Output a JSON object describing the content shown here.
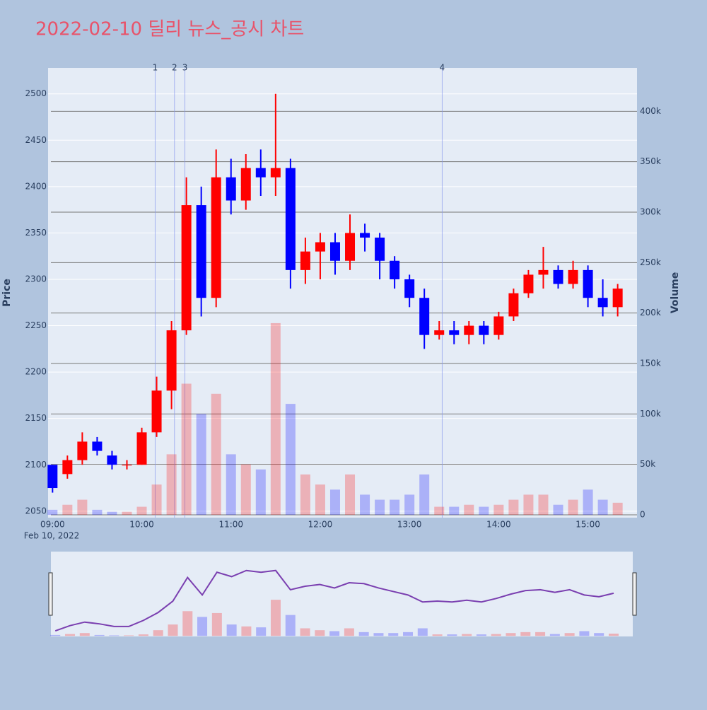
{
  "chart_data": {
    "type": "candlestick",
    "title": "2022-02-10 딜리 뉴스_공시 차트",
    "y_label": "Price",
    "y2_label": "Volume",
    "x": [
      "09:00",
      "09:10",
      "09:20",
      "09:30",
      "09:40",
      "09:50",
      "10:00",
      "10:10",
      "10:20",
      "10:30",
      "10:40",
      "10:50",
      "11:00",
      "11:10",
      "11:20",
      "11:30",
      "11:40",
      "11:50",
      "12:00",
      "12:10",
      "12:20",
      "12:30",
      "12:40",
      "12:50",
      "13:00",
      "13:10",
      "13:20",
      "13:30",
      "13:40",
      "13:50",
      "14:00",
      "14:10",
      "14:20",
      "14:30",
      "14:40",
      "14:50",
      "15:00",
      "15:10",
      "15:20"
    ],
    "open": [
      2100,
      2090,
      2105,
      2125,
      2110,
      2100,
      2100,
      2135,
      2180,
      2245,
      2380,
      2280,
      2410,
      2385,
      2420,
      2410,
      2420,
      2310,
      2330,
      2340,
      2320,
      2350,
      2345,
      2320,
      2300,
      2280,
      2240,
      2245,
      2240,
      2250,
      2240,
      2260,
      2285,
      2305,
      2310,
      2295,
      2310,
      2280,
      2270
    ],
    "high": [
      2100,
      2110,
      2135,
      2130,
      2115,
      2105,
      2140,
      2195,
      2255,
      2410,
      2400,
      2440,
      2430,
      2435,
      2440,
      2500,
      2430,
      2345,
      2350,
      2350,
      2370,
      2360,
      2350,
      2325,
      2305,
      2290,
      2255,
      2255,
      2255,
      2255,
      2265,
      2290,
      2310,
      2335,
      2315,
      2320,
      2315,
      2300,
      2295
    ],
    "low": [
      2070,
      2085,
      2100,
      2110,
      2095,
      2095,
      2100,
      2130,
      2160,
      2240,
      2260,
      2270,
      2370,
      2375,
      2390,
      2390,
      2290,
      2295,
      2300,
      2305,
      2310,
      2330,
      2300,
      2290,
      2270,
      2225,
      2235,
      2230,
      2230,
      2230,
      2235,
      2255,
      2280,
      2290,
      2290,
      2290,
      2270,
      2260,
      2260
    ],
    "close": [
      2075,
      2105,
      2125,
      2115,
      2100,
      2100,
      2135,
      2180,
      2245,
      2380,
      2280,
      2410,
      2385,
      2420,
      2410,
      2420,
      2310,
      2330,
      2340,
      2320,
      2350,
      2345,
      2320,
      2300,
      2280,
      2240,
      2245,
      2240,
      2250,
      2240,
      2260,
      2285,
      2305,
      2310,
      2295,
      2310,
      2280,
      2270,
      2290
    ],
    "volume": [
      5000,
      10000,
      15000,
      5000,
      3000,
      3000,
      8000,
      30000,
      60000,
      130000,
      100000,
      120000,
      60000,
      50000,
      45000,
      190000,
      110000,
      40000,
      30000,
      25000,
      40000,
      20000,
      15000,
      15000,
      20000,
      40000,
      8000,
      8000,
      10000,
      8000,
      10000,
      15000,
      20000,
      20000,
      10000,
      15000,
      25000,
      15000,
      12000
    ],
    "increasing_color": "#ff0000",
    "decreasing_color": "#0000ff",
    "xlim": [
      "08:57",
      "15:33"
    ],
    "xticks": [
      "09:00",
      "10:00",
      "11:00",
      "12:00",
      "13:00",
      "14:00",
      "15:00"
    ],
    "x_date_label": "Feb 10, 2022",
    "ylim": [
      2043,
      2528
    ],
    "yticks": [
      2050,
      2100,
      2150,
      2200,
      2250,
      2300,
      2350,
      2400,
      2450,
      2500
    ],
    "y2lim": [
      -2800,
      443000
    ],
    "y2ticks": [
      0,
      {
        "value": 50000,
        "label": "50k"
      },
      {
        "value": 100000,
        "label": "100k"
      },
      {
        "value": 150000,
        "label": "150k"
      },
      {
        "value": 200000,
        "label": "200k"
      },
      {
        "value": 250000,
        "label": "250k"
      },
      {
        "value": 300000,
        "label": "300k"
      },
      {
        "value": 350000,
        "label": "350k"
      },
      {
        "value": 400000,
        "label": "400k"
      }
    ],
    "annotations": [
      {
        "x": "10:09",
        "text": "1"
      },
      {
        "x": "10:22",
        "text": "2"
      },
      {
        "x": "10:29",
        "text": "3"
      },
      {
        "x": "13:22",
        "text": "4"
      }
    ],
    "grid": true
  }
}
